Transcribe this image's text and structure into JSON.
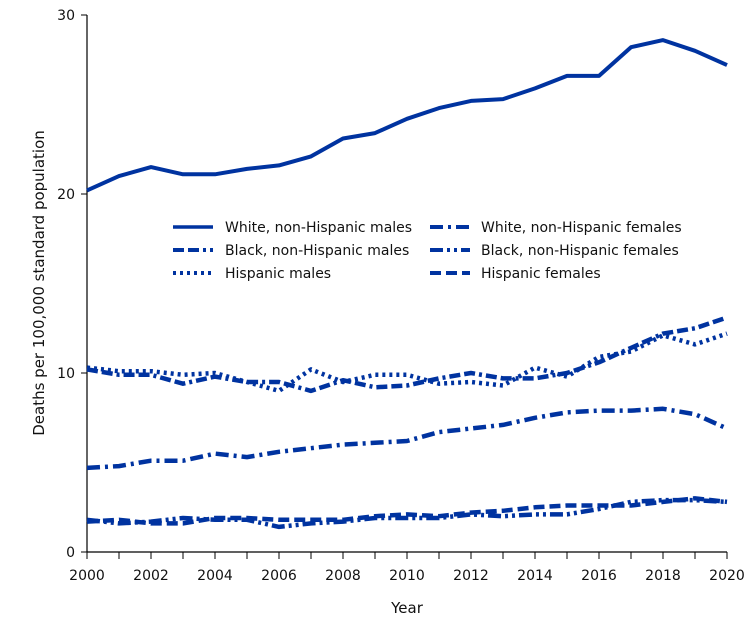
{
  "chart_data": {
    "type": "line",
    "title": "",
    "xlabel": "Year",
    "ylabel": "Deaths per 100,000 standard  population",
    "xlim": [
      2000,
      2020
    ],
    "ylim": [
      0,
      30
    ],
    "x_ticks": [
      "2000",
      "2002",
      "2004",
      "2006",
      "2008",
      "2010",
      "2012",
      "2014",
      "2016",
      "2018",
      "2020"
    ],
    "y_ticks": [
      "0",
      "10",
      "20",
      "30"
    ],
    "grid": false,
    "legend_placement": "center (inside plot)",
    "line_color": "#0033a0",
    "x": [
      2000,
      2001,
      2002,
      2003,
      2004,
      2005,
      2006,
      2007,
      2008,
      2009,
      2010,
      2011,
      2012,
      2013,
      2014,
      2015,
      2016,
      2017,
      2018,
      2019,
      2020
    ],
    "series": [
      {
        "name": "White, non-Hispanic males",
        "style": "solid",
        "values": [
          20.2,
          21.0,
          21.5,
          21.1,
          21.1,
          21.4,
          21.6,
          22.1,
          23.1,
          23.4,
          24.2,
          24.8,
          25.2,
          25.3,
          25.9,
          26.6,
          26.6,
          28.2,
          28.6,
          28.0,
          27.2
        ]
      },
      {
        "name": "Black, non-Hispanic males",
        "style": "dash-dash-dot",
        "values": [
          10.2,
          9.9,
          9.9,
          9.4,
          9.8,
          9.5,
          9.5,
          9.0,
          9.6,
          9.2,
          9.3,
          9.7,
          10.0,
          9.7,
          9.7,
          10.0,
          10.6,
          11.4,
          12.2,
          12.5,
          13.1
        ]
      },
      {
        "name": "Hispanic males",
        "style": "dotted",
        "values": [
          10.3,
          10.1,
          10.1,
          9.9,
          10.0,
          9.5,
          9.0,
          10.2,
          9.5,
          9.9,
          9.9,
          9.4,
          9.5,
          9.3,
          10.3,
          9.8,
          10.9,
          11.2,
          12.1,
          11.6,
          12.2
        ]
      },
      {
        "name": "White, non-Hispanic females",
        "style": "dash-dot",
        "values": [
          4.7,
          4.8,
          5.1,
          5.1,
          5.5,
          5.3,
          5.6,
          5.8,
          6.0,
          6.1,
          6.2,
          6.7,
          6.9,
          7.1,
          7.5,
          7.8,
          7.9,
          7.9,
          8.0,
          7.7,
          6.9
        ]
      },
      {
        "name": "Black, non-Hispanic females",
        "style": "dash-dot-dot",
        "values": [
          1.8,
          1.6,
          1.7,
          1.9,
          1.8,
          1.8,
          1.4,
          1.6,
          1.7,
          1.9,
          1.9,
          1.9,
          2.1,
          2.0,
          2.1,
          2.1,
          2.4,
          2.8,
          2.9,
          2.9,
          2.8
        ]
      },
      {
        "name": "Hispanic females",
        "style": "dashed",
        "values": [
          1.7,
          1.8,
          1.6,
          1.6,
          1.9,
          1.9,
          1.8,
          1.8,
          1.8,
          2.0,
          2.1,
          2.0,
          2.2,
          2.3,
          2.5,
          2.6,
          2.6,
          2.6,
          2.8,
          3.0,
          2.8
        ]
      }
    ]
  }
}
